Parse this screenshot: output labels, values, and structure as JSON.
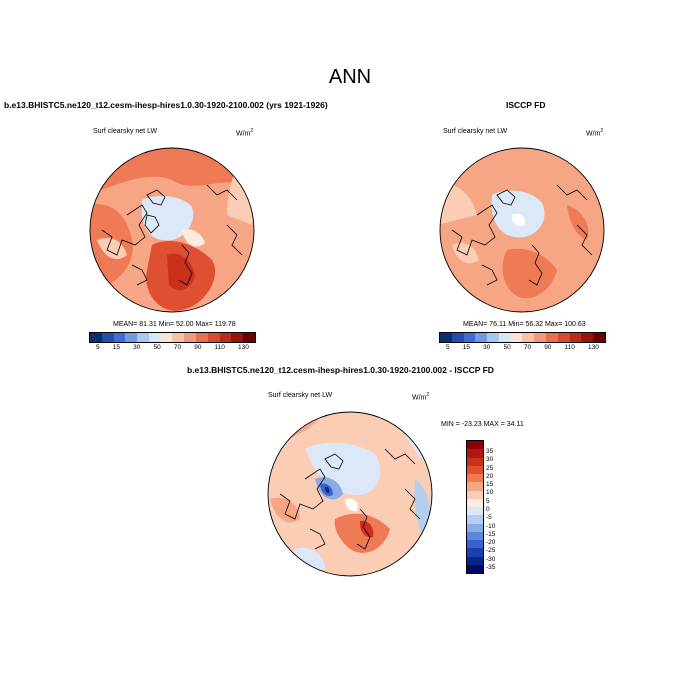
{
  "main_title": "ANN",
  "panel1": {
    "title": "b.e13.BHISTC5.ne120_t12.cesm-ihesp-hires1.0.30-1920-2100.002 (yrs 1921-1926)",
    "variable": "Surf clearsky net LW",
    "units_base": "W/m",
    "units_exp": "2",
    "stats": "MEAN=  81.31  Min=  52.00  Max= 119.78"
  },
  "panel2": {
    "title": "ISCCP FD",
    "variable": "Surf clearsky net LW",
    "units_base": "W/m",
    "units_exp": "2",
    "stats": "MEAN=  76.11  Min=  56.32  Max= 100.63"
  },
  "panel3": {
    "title": "b.e13.BHISTC5.ne120_t12.cesm-ihesp-hires1.0.30-1920-2100.002 - ISCCP FD",
    "variable": "Surf clearsky net LW",
    "units_base": "W/m",
    "units_exp": "2",
    "minmax": "MIN = -23.23 MAX =  34.11"
  },
  "colorbar_abs": {
    "labels": [
      "5",
      "15",
      "30",
      "50",
      "70",
      "90",
      "110",
      "130"
    ],
    "colors": [
      "#08306b",
      "#1f4fb0",
      "#3a6fd8",
      "#6e9be6",
      "#a9c8f0",
      "#d6e6f7",
      "#fbe3d4",
      "#f7c2a6",
      "#f39b78",
      "#e8704c",
      "#d94a2b",
      "#bf2a17",
      "#9a1208",
      "#6b0000"
    ]
  },
  "colorbar_diff": {
    "labels": [
      "35",
      "30",
      "25",
      "20",
      "15",
      "10",
      "5",
      "0",
      "-5",
      "-10",
      "-15",
      "-20",
      "-25",
      "-30",
      "-35"
    ],
    "colors": [
      "#8b0000",
      "#b01a0e",
      "#c9301e",
      "#df4f32",
      "#ee7a56",
      "#f6a684",
      "#fbcdb4",
      "#fdebe0",
      "#dce8f7",
      "#b4cdf0",
      "#8aace6",
      "#5d87dc",
      "#3762cf",
      "#1b40b0",
      "#0c2487",
      "#000a60"
    ]
  }
}
